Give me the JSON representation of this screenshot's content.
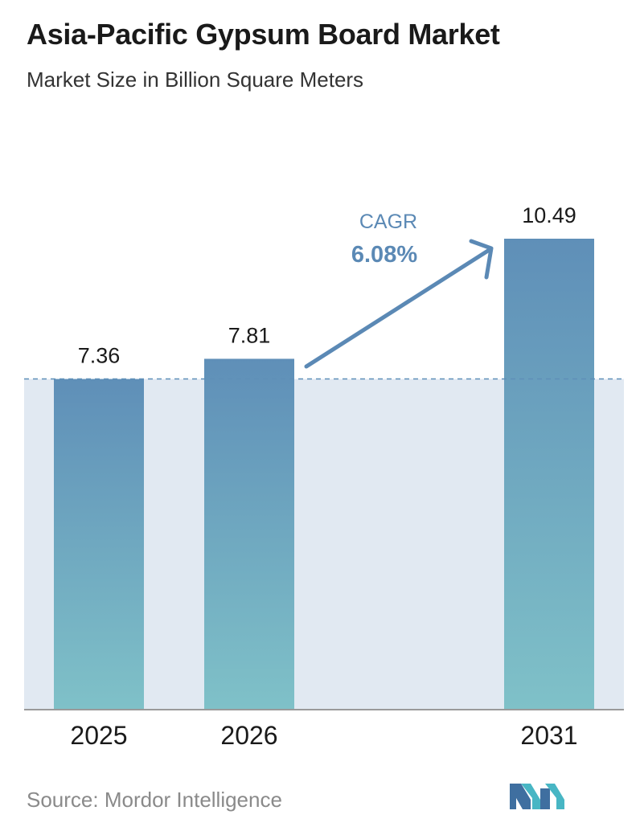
{
  "header": {
    "title": "Asia-Pacific Gypsum Board Market",
    "subtitle": "Market Size in Billion Square Meters"
  },
  "chart_data": {
    "type": "bar",
    "categories": [
      "2025",
      "2026",
      "2031"
    ],
    "values": [
      7.36,
      7.81,
      10.49
    ],
    "data_labels": [
      "7.36",
      "7.81",
      "10.49"
    ],
    "title": "Asia-Pacific Gypsum Board Market",
    "subtitle": "Market Size in Billion Square Meters",
    "ylim": [
      0,
      10.49
    ],
    "grid": false,
    "reference_line_value": 7.36,
    "annotation": {
      "label": "CAGR",
      "value": "6.08%",
      "from": "2026",
      "to": "2031"
    },
    "colors": {
      "bar_top": "#5f8fb8",
      "bar_bottom": "#7fc1c8",
      "band": "#e1e9f2",
      "arrow": "#5b89b5",
      "reference_line": "#5f8fb8"
    }
  },
  "footer": {
    "source": "Source:  Mordor Intelligence",
    "logo_icon": "mordor-intelligence-logo-icon"
  }
}
